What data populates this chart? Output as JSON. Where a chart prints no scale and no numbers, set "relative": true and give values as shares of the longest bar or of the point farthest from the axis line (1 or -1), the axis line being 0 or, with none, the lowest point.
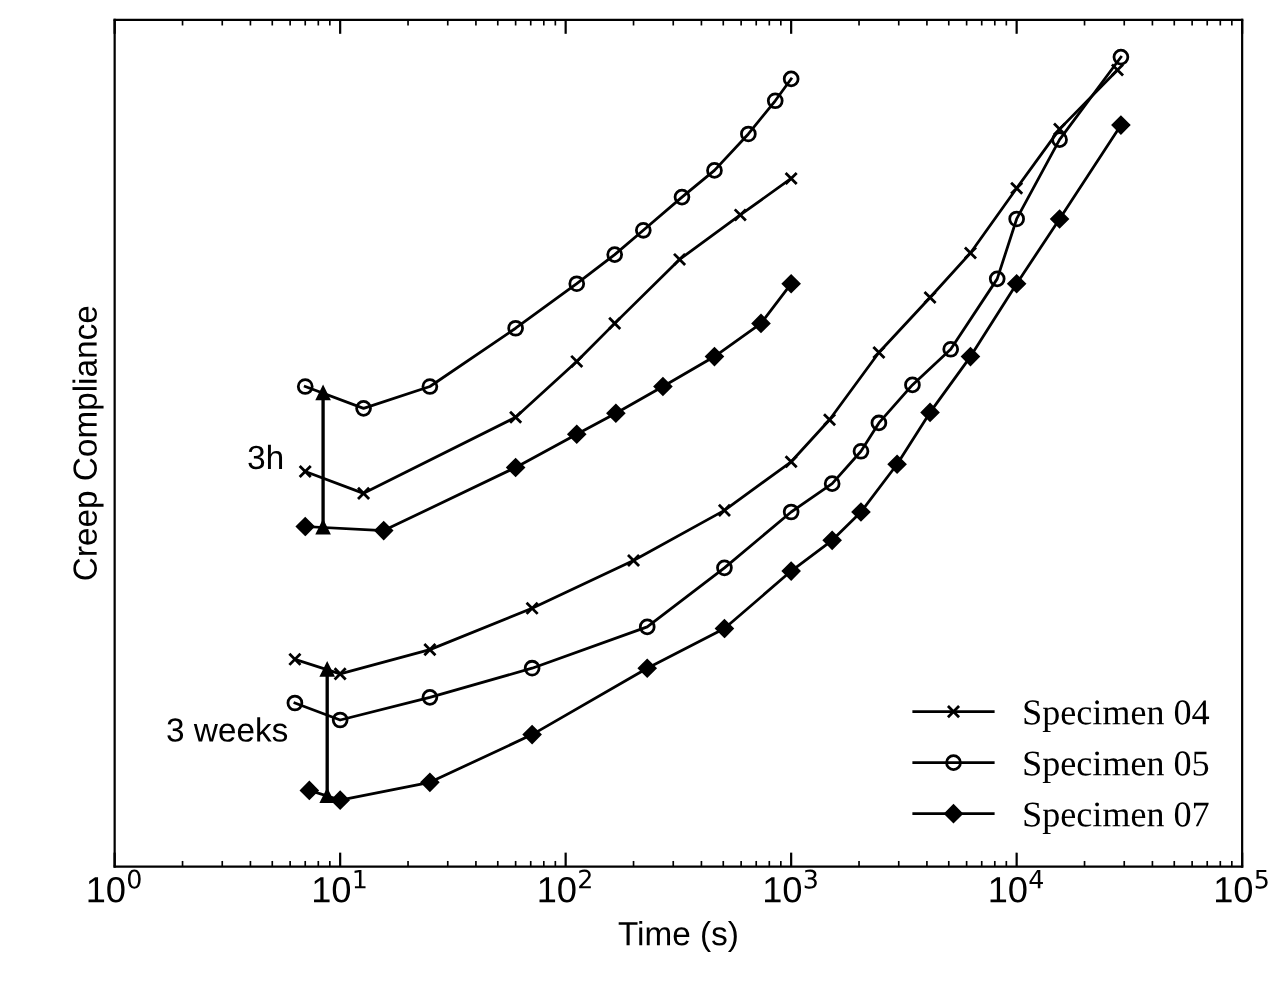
{
  "chart_data": {
    "type": "line",
    "xlabel": "Time (s)",
    "ylabel": "Creep Compliance",
    "relative": true,
    "log": "x",
    "xlim": [
      1,
      100000
    ],
    "xticks": [
      {
        "value": 1,
        "label": "10$^{0}$"
      },
      {
        "value": 10,
        "label": "10$^{1}$"
      },
      {
        "value": 100,
        "label": "10$^{2}$"
      },
      {
        "value": 1000,
        "label": "10$^{3}$"
      },
      {
        "value": 10000,
        "label": "10$^{4}$"
      },
      {
        "value": 100000,
        "label": "10$^{5}$"
      }
    ],
    "grid": false,
    "legend": "bottom right",
    "line_style": "solid",
    "series": [
      {
        "name": "Specimen 04",
        "color": "#000000",
        "marker": "cross",
        "x": [
          7,
          12.7,
          60,
          112,
          165,
          320,
          595,
          1000
        ],
        "values": [
          0.488,
          0.461,
          0.555,
          0.624,
          0.671,
          0.75,
          0.805,
          0.85
        ]
      },
      {
        "name": "Specimen 05",
        "color": "#000000",
        "marker": "circle",
        "x": [
          7,
          12.7,
          25,
          60,
          112,
          165,
          221,
          328,
          457,
          646,
          850,
          1000
        ],
        "values": [
          0.593,
          0.566,
          0.593,
          0.665,
          0.72,
          0.756,
          0.786,
          0.827,
          0.86,
          0.905,
          0.946,
          0.973
        ]
      },
      {
        "name": "Specimen 07",
        "color": "#000000",
        "marker": "diamond",
        "x": [
          7,
          15.6,
          60,
          112,
          167,
          270,
          457,
          735,
          1000
        ],
        "values": [
          0.42,
          0.415,
          0.493,
          0.534,
          0.56,
          0.593,
          0.63,
          0.671,
          0.72
        ]
      },
      {
        "color": "#000000",
        "marker": "cross",
        "x": [
          6.3,
          10,
          25,
          71,
          200,
          506,
          1000,
          1480,
          2450,
          4130,
          6240,
          10000,
          15500,
          28000
        ],
        "values": [
          0.256,
          0.238,
          0.268,
          0.319,
          0.378,
          0.44,
          0.5,
          0.552,
          0.635,
          0.703,
          0.758,
          0.838,
          0.911,
          0.984
        ]
      },
      {
        "color": "#000000",
        "marker": "circle",
        "x": [
          6.3,
          10,
          25,
          71,
          230,
          506,
          1000,
          1520,
          2040,
          2450,
          3450,
          5100,
          8200,
          10000,
          15500,
          29000
        ],
        "values": [
          0.202,
          0.181,
          0.209,
          0.245,
          0.296,
          0.369,
          0.438,
          0.473,
          0.513,
          0.548,
          0.595,
          0.639,
          0.726,
          0.8,
          0.898,
          1
        ]
      },
      {
        "color": "#000000",
        "marker": "diamond",
        "x": [
          7.3,
          10,
          25,
          71,
          230,
          506,
          1000,
          1520,
          2040,
          2950,
          4130,
          6240,
          10000,
          15500,
          29000
        ],
        "values": [
          0.094,
          0.082,
          0.104,
          0.163,
          0.245,
          0.294,
          0.365,
          0.403,
          0.438,
          0.497,
          0.561,
          0.63,
          0.72,
          0.8,
          0.916
        ]
      }
    ],
    "annotations": [
      "3h",
      "3 weeks"
    ]
  }
}
